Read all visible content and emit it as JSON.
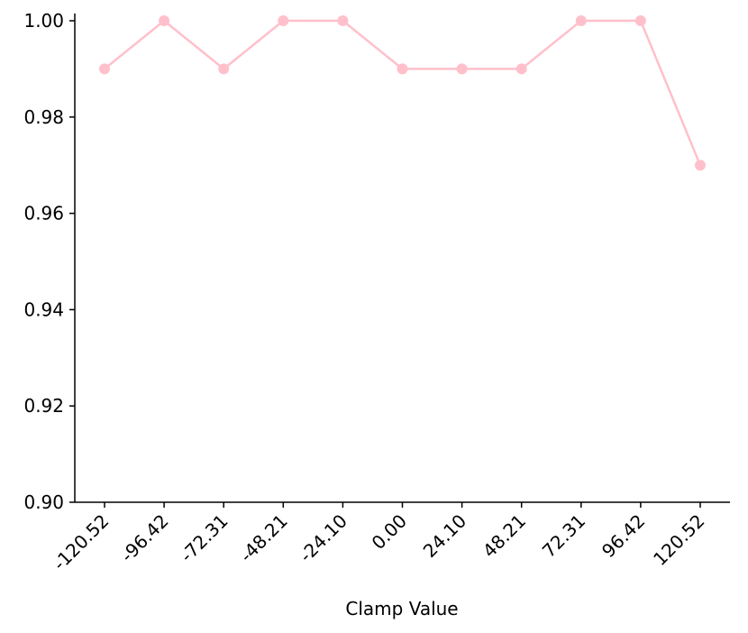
{
  "chart_data": {
    "type": "line",
    "x_label": "Clamp Value",
    "categories": [
      "-120.52",
      "-96.42",
      "-72.31",
      "-48.21",
      "-24.10",
      "0.00",
      "24.10",
      "48.21",
      "72.31",
      "96.42",
      "120.52"
    ],
    "series": [
      {
        "color": "#ffc0cb",
        "values": [
          0.99,
          1.0,
          0.99,
          1.0,
          1.0,
          0.99,
          0.99,
          0.99,
          1.0,
          1.0,
          0.97
        ]
      }
    ],
    "ylim": [
      0.9,
      1.0015
    ],
    "yticks": [
      {
        "value": 0.9,
        "label": "0.90"
      },
      {
        "value": 0.92,
        "label": "0.92"
      },
      {
        "value": 0.94,
        "label": "0.94"
      },
      {
        "value": 0.96,
        "label": "0.96"
      },
      {
        "value": 0.98,
        "label": "0.98"
      },
      {
        "value": 1.0,
        "label": "1.00"
      }
    ]
  }
}
